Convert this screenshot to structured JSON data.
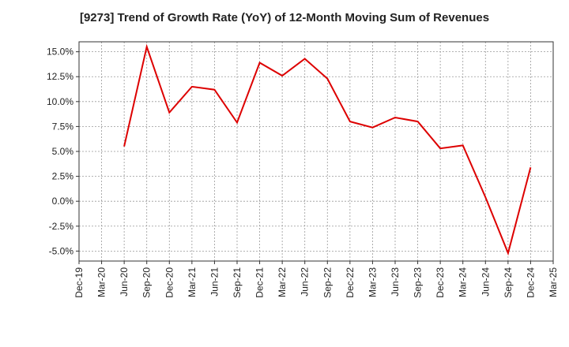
{
  "chart_data": {
    "type": "line",
    "title": "[9273]  Trend of Growth Rate (YoY) of 12-Month Moving Sum of Revenues",
    "xlabel": "",
    "ylabel": "",
    "ylim": [
      -6.0,
      16.0
    ],
    "y_ticks": [
      15.0,
      12.5,
      10.0,
      7.5,
      5.0,
      2.5,
      0.0,
      -2.5,
      -5.0
    ],
    "y_tick_labels": [
      "15.0%",
      "12.5%",
      "10.0%",
      "7.5%",
      "5.0%",
      "2.5%",
      "0.0%",
      "-2.5%",
      "-5.0%"
    ],
    "x_tick_labels": [
      "Dec-19",
      "Mar-20",
      "Jun-20",
      "Sep-20",
      "Dec-20",
      "Mar-21",
      "Jun-21",
      "Sep-21",
      "Dec-21",
      "Mar-22",
      "Jun-22",
      "Sep-22",
      "Dec-22",
      "Mar-23",
      "Jun-23",
      "Sep-23",
      "Dec-23",
      "Mar-24",
      "Jun-24",
      "Sep-24",
      "Dec-24",
      "Mar-25"
    ],
    "grid": true,
    "series": [
      {
        "color": "#dd0000",
        "x": [
          "Jun-20",
          "Sep-20",
          "Dec-20",
          "Mar-21",
          "Jun-21",
          "Sep-21",
          "Dec-21",
          "Mar-22",
          "Jun-22",
          "Sep-22",
          "Dec-22",
          "Mar-23",
          "Jun-23",
          "Sep-23",
          "Dec-23",
          "Mar-24",
          "Jun-24",
          "Sep-24",
          "Dec-24"
        ],
        "values": [
          5.5,
          15.5,
          8.9,
          11.5,
          11.2,
          7.9,
          13.9,
          12.6,
          14.3,
          12.3,
          8.0,
          7.4,
          8.4,
          8.0,
          5.3,
          5.6,
          0.4,
          -5.2,
          3.4
        ]
      }
    ]
  }
}
